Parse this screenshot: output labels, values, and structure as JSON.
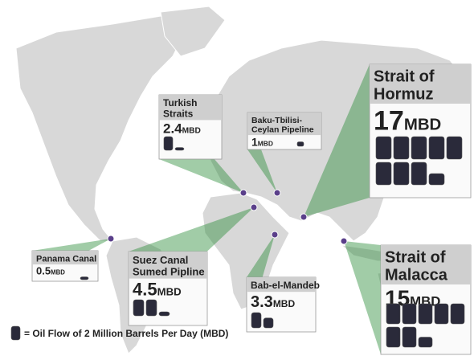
{
  "chokepoints": [
    {
      "title_lines": [
        "Turkish",
        "Straits"
      ],
      "value": 2.4,
      "unit": "MBD"
    },
    {
      "title_lines": [
        "Baku-Tbilisi-",
        "Ceylan Pipeline"
      ],
      "value": 1,
      "unit": "MBD"
    },
    {
      "title_lines": [
        "Strait of",
        "Hormuz"
      ],
      "value": 17,
      "unit": "MBD"
    },
    {
      "title_lines": [
        "Strait of",
        "Malacca"
      ],
      "value": 15,
      "unit": "MBD"
    },
    {
      "title_lines": [
        "Panama Canal"
      ],
      "value": 0.5,
      "unit": "MBD"
    },
    {
      "title_lines": [
        "Suez Canal",
        "Sumed Pipline"
      ],
      "value": 4.5,
      "unit": "MBD"
    },
    {
      "title_lines": [
        "Bab-el-Mandeb"
      ],
      "value": 3.3,
      "unit": "MBD"
    }
  ],
  "legend": {
    "prefix": "= Oil Flow of",
    "barrel_value": 2,
    "suffix": "Million Barrels Per Day (MBD)"
  }
}
